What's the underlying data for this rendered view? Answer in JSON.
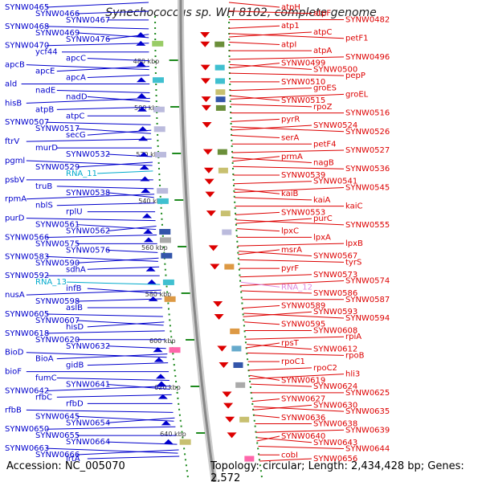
{
  "title": "Synechococcus sp. WH 8102, complete genome",
  "footer": {
    "accession": "Accession: NC_005070",
    "topology": "Topology: circular; Length: 2,434,428 bp; Genes: 2,572"
  },
  "colors": {
    "left_genes": "#0000cc",
    "right_genes": "#dd0000",
    "rna_left": "#00aacc",
    "rna_right": "#dd88dd",
    "backbone": "#888888",
    "tick": "#1e8a1e"
  },
  "scale_labels": [
    "480 kbp",
    "500 kbp",
    "520 kbp",
    "540 kbp",
    "560 kbp",
    "580 kbp",
    "600 kbp",
    "620 kbp",
    "640 kbp"
  ],
  "left_labels": [
    "SYNW0465",
    "SYNW0466",
    "SYNW0467",
    "SYNW0468",
    "SYNW0469",
    "SYNW0476",
    "SYNW0470",
    "ycf44",
    "apcC",
    "apcB",
    "apcE",
    "apcA",
    "ald",
    "nadE",
    "nadD",
    "hisB",
    "atpB",
    "atpC",
    "SYNW0507",
    "SYNW0517",
    "secG",
    "ftrV",
    "murD",
    "SYNW0532",
    "pgml",
    "SYNW0529",
    "RNA_11",
    "psbV",
    "truB",
    "SYNW0538",
    "rpmA",
    "nblS",
    "rplU",
    "purD",
    "SYNW0561",
    "SYNW0562",
    "SYNW0566",
    "SYNW0575",
    "SYNW0576",
    "SYNW0583",
    "SYNW0590",
    "sdhA",
    "SYNW0592",
    "RNA_13",
    "infB",
    "nusA",
    "SYNW0598",
    "aslB",
    "SYNW0605",
    "SYNW0607",
    "hisD",
    "SYNW0618",
    "SYNW0620",
    "SYNW0632",
    "BioD",
    "BioA",
    "gidB",
    "bioF",
    "fumC",
    "SYNW0641",
    "SYNW0642",
    "rfbC",
    "rfbD",
    "rfbB",
    "SYNW0645",
    "SYNW0654",
    "SYNW0650",
    "SYNW0655",
    "SYNW0664",
    "SYNW0663",
    "SYNW0666",
    "lrtA"
  ],
  "right_labels": [
    "atpH",
    "atpF",
    "SYNW0482",
    "atp1",
    "atpC",
    "petF1",
    "atpI",
    "atpA",
    "SYNW0496",
    "SYNW0499",
    "SYNW0500",
    "pepP",
    "SYNW0510",
    "groES",
    "groEL",
    "SYNW0515",
    "rpoZ",
    "SYNW0516",
    "pyrR",
    "SYNW0524",
    "SYNW0526",
    "serA",
    "petF4",
    "SYNW0527",
    "prmA",
    "nagB",
    "SYNW0536",
    "SYNW0539",
    "SYNW0541",
    "SYNW0545",
    "kaiB",
    "kaiA",
    "kaiC",
    "SYNW0553",
    "purC",
    "SYNW0555",
    "lpxC",
    "lpxA",
    "lpxB",
    "msrA",
    "SYNW0567",
    "tyrS",
    "pyrF",
    "SYNW0573",
    "SYNW0574",
    "RNA_12",
    "SYNW0586",
    "SYNW0587",
    "SYNW0589",
    "SYNW0593",
    "SYNW0594",
    "SYNW0595",
    "SYNW0608",
    "rpiA",
    "rpsT",
    "SYNW0612",
    "rpoB",
    "rpoC1",
    "rpoC2",
    "hli3",
    "SYNW0619",
    "SYNW0624",
    "SYNW0625",
    "SYNW0627",
    "SYNW0630",
    "SYNW0635",
    "SYNW0636",
    "SYNW0638",
    "SYNW0639",
    "SYNW0640",
    "SYNW0643",
    "SYNW0644",
    "cobI",
    "SYNW0656"
  ]
}
